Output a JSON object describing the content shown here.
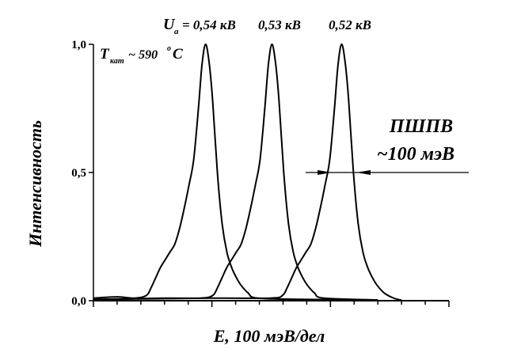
{
  "chart_data": {
    "type": "line",
    "title": "",
    "xlabel": "E, 100 мэВ/дел",
    "ylabel": "Интенсивность",
    "xlim": [
      0,
      1500
    ],
    "ylim": [
      0,
      1.0
    ],
    "x_tick_labels_shown": false,
    "yticks": [
      0,
      0.5,
      1.0
    ],
    "ytick_labels": [
      "0,0",
      "0,5",
      "1,0"
    ],
    "grid": false,
    "line_color": "#000000",
    "annotations": {
      "voltage_prefix": "U",
      "voltage_sub": "a",
      "voltage_1": "= 0,54 кВ",
      "voltage_2": "0,53 кВ",
      "voltage_3": "0,52 кВ",
      "temp_prefix": "T",
      "temp_sub": "кат",
      "temp_value": "~ 590",
      "temp_deg": "o",
      "temp_unit": "C",
      "fwhm_label": "ПШПВ",
      "fwhm_value": "~100 мэВ",
      "fwhm_level": 0.5
    },
    "series": [
      {
        "x": [
          0,
          100,
          173,
          223,
          243,
          263,
          283,
          303,
          323,
          343,
          363,
          383,
          403,
          423,
          443,
          458,
          473,
          488,
          503,
          523,
          543,
          563,
          583,
          603,
          623,
          653,
          693,
          900,
          1200
        ],
        "y": [
          0.01,
          0.015,
          0.01,
          0.02,
          0.05,
          0.09,
          0.13,
          0.16,
          0.19,
          0.22,
          0.28,
          0.36,
          0.45,
          0.55,
          0.75,
          0.92,
          1.0,
          0.93,
          0.78,
          0.5,
          0.3,
          0.19,
          0.13,
          0.09,
          0.06,
          0.03,
          0.01,
          0.005,
          0.003
        ]
      },
      {
        "x": [
          0,
          300,
          453,
          503,
          523,
          543,
          563,
          583,
          603,
          623,
          643,
          663,
          683,
          703,
          723,
          738,
          753,
          768,
          783,
          803,
          823,
          843,
          863,
          883,
          903,
          933,
          973,
          1200
        ],
        "y": [
          0.005,
          0.01,
          0.01,
          0.02,
          0.05,
          0.09,
          0.13,
          0.16,
          0.19,
          0.22,
          0.28,
          0.36,
          0.45,
          0.55,
          0.75,
          0.92,
          1.0,
          0.93,
          0.78,
          0.5,
          0.3,
          0.19,
          0.13,
          0.09,
          0.06,
          0.03,
          0.01,
          0.003
        ]
      },
      {
        "x": [
          0,
          500,
          747,
          797,
          817,
          837,
          857,
          877,
          897,
          917,
          937,
          957,
          977,
          997,
          1017,
          1032,
          1047,
          1062,
          1077,
          1097,
          1117,
          1137,
          1157,
          1177,
          1197,
          1227,
          1267,
          1300
        ],
        "y": [
          0.005,
          0.01,
          0.01,
          0.02,
          0.05,
          0.09,
          0.13,
          0.16,
          0.19,
          0.22,
          0.28,
          0.36,
          0.45,
          0.55,
          0.75,
          0.92,
          1.0,
          0.93,
          0.78,
          0.5,
          0.3,
          0.19,
          0.13,
          0.09,
          0.06,
          0.03,
          0.01,
          0.002
        ]
      }
    ]
  }
}
